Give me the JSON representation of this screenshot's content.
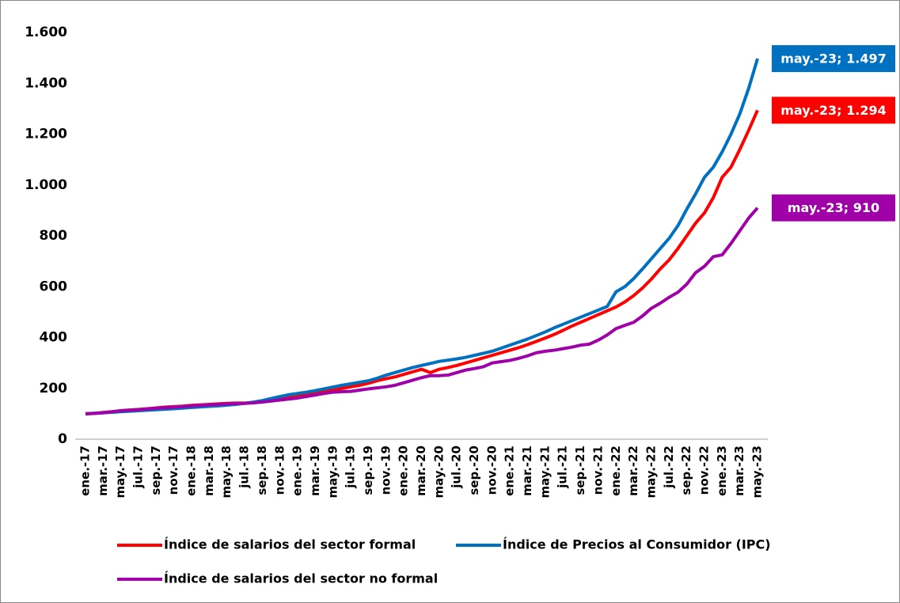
{
  "chart_data": {
    "type": "line",
    "categories": [
      "ene.-17",
      null,
      "mar.-17",
      null,
      "may.-17",
      null,
      "jul.-17",
      null,
      "sep.-17",
      null,
      "nov.-17",
      null,
      "ene.-18",
      null,
      "mar.-18",
      null,
      "may.-18",
      null,
      "jul.-18",
      null,
      "sep.-18",
      null,
      "nov.-18",
      null,
      "ene.-19",
      null,
      "mar.-19",
      null,
      "may.-19",
      null,
      "jul.-19",
      null,
      "sep.-19",
      null,
      "nov.-19",
      null,
      "ene.-20",
      null,
      "mar.-20",
      null,
      "may.-20",
      null,
      "jul.-20",
      null,
      "sep.-20",
      null,
      "nov.-20",
      null,
      "ene.-21",
      null,
      "mar.-21",
      null,
      "may.-21",
      null,
      "jul.-21",
      null,
      "sep.-21",
      null,
      "nov.-21",
      null,
      "ene.-22",
      null,
      "mar.-22",
      null,
      "may.-22",
      null,
      "jul.-22",
      null,
      "sep.-22",
      null,
      "nov.-22",
      null,
      "ene.-23",
      null,
      "mar.-23",
      null,
      "may.-23"
    ],
    "series": [
      {
        "name": "Índice de salarios del sector formal",
        "color": "#ff0000",
        "values": [
          100,
          102,
          105,
          108,
          112,
          115,
          117,
          120,
          123,
          126,
          128,
          130,
          133,
          135,
          137,
          139,
          141,
          142,
          142,
          144,
          148,
          155,
          162,
          168,
          172,
          177,
          182,
          188,
          194,
          200,
          206,
          212,
          220,
          230,
          238,
          245,
          255,
          265,
          275,
          262,
          275,
          282,
          290,
          300,
          310,
          320,
          330,
          340,
          350,
          360,
          372,
          385,
          398,
          412,
          428,
          445,
          460,
          475,
          490,
          505,
          520,
          540,
          565,
          595,
          630,
          670,
          705,
          750,
          800,
          850,
          890,
          950,
          1030,
          1070,
          1140,
          1215,
          1294
        ],
        "value_labels": [
          null,
          null,
          null,
          null,
          null,
          null,
          null,
          null,
          null,
          null,
          null,
          null,
          null,
          null,
          null,
          null,
          null,
          null,
          null,
          null,
          null,
          null,
          null,
          null,
          null,
          null,
          null,
          null,
          null,
          null,
          null,
          null,
          null,
          null,
          null,
          null,
          null,
          null,
          null,
          null,
          null,
          null,
          null,
          null,
          null,
          null,
          null,
          null,
          null,
          null,
          null,
          null,
          null,
          null,
          null,
          null,
          null,
          null,
          null,
          null,
          null,
          null,
          null,
          null,
          null,
          null,
          null,
          null,
          null,
          null,
          null,
          null,
          null,
          null,
          null,
          null,
          "may.-23; 1.294"
        ]
      },
      {
        "name": "Índice de Precios al Consumidor (IPC)",
        "color": "#0070c0",
        "values": [
          100,
          102,
          104,
          106,
          108,
          110,
          112,
          114,
          116,
          118,
          120,
          122,
          125,
          127,
          129,
          131,
          134,
          137,
          141,
          146,
          152,
          160,
          168,
          175,
          180,
          185,
          191,
          198,
          205,
          212,
          218,
          224,
          230,
          240,
          252,
          262,
          272,
          282,
          290,
          298,
          306,
          311,
          316,
          322,
          330,
          338,
          346,
          358,
          370,
          382,
          394,
          408,
          422,
          438,
          452,
          466,
          480,
          494,
          508,
          522,
          580,
          600,
          632,
          670,
          710,
          750,
          790,
          840,
          905,
          965,
          1030,
          1070,
          1130,
          1200,
          1280,
          1380,
          1497
        ],
        "value_labels": [
          null,
          null,
          null,
          null,
          null,
          null,
          null,
          null,
          null,
          null,
          null,
          null,
          null,
          null,
          null,
          null,
          null,
          null,
          null,
          null,
          null,
          null,
          null,
          null,
          null,
          null,
          null,
          null,
          null,
          null,
          null,
          null,
          null,
          null,
          null,
          null,
          null,
          null,
          null,
          null,
          null,
          null,
          null,
          null,
          null,
          null,
          null,
          null,
          null,
          null,
          null,
          null,
          null,
          null,
          null,
          null,
          null,
          null,
          null,
          null,
          null,
          null,
          null,
          null,
          null,
          null,
          null,
          null,
          null,
          null,
          null,
          null,
          null,
          null,
          null,
          null,
          "may.-23; 1.497"
        ]
      },
      {
        "name": "Índice de salarios del sector no formal",
        "color": "#a000a8",
        "values": [
          100,
          101,
          104,
          108,
          112,
          114,
          116,
          119,
          122,
          124,
          126,
          128,
          131,
          133,
          135,
          137,
          139,
          140,
          141,
          143,
          146,
          150,
          154,
          158,
          162,
          168,
          174,
          180,
          185,
          187,
          188,
          193,
          198,
          202,
          206,
          212,
          222,
          232,
          242,
          250,
          250,
          252,
          262,
          272,
          278,
          285,
          300,
          305,
          310,
          318,
          328,
          340,
          346,
          350,
          356,
          362,
          370,
          374,
          390,
          410,
          435,
          448,
          460,
          485,
          515,
          535,
          558,
          578,
          610,
          655,
          680,
          718,
          725,
          770,
          820,
          870,
          910
        ],
        "value_labels": [
          null,
          null,
          null,
          null,
          null,
          null,
          null,
          null,
          null,
          null,
          null,
          null,
          null,
          null,
          null,
          null,
          null,
          null,
          null,
          null,
          null,
          null,
          null,
          null,
          null,
          null,
          null,
          null,
          null,
          null,
          null,
          null,
          null,
          null,
          null,
          null,
          null,
          null,
          null,
          null,
          null,
          null,
          null,
          null,
          null,
          null,
          null,
          null,
          null,
          null,
          null,
          null,
          null,
          null,
          null,
          null,
          null,
          null,
          null,
          null,
          null,
          null,
          null,
          null,
          null,
          null,
          null,
          null,
          null,
          null,
          null,
          null,
          null,
          null,
          null,
          null,
          "may.-23; 910"
        ]
      }
    ],
    "ylim": [
      0,
      1600
    ],
    "yticks": [
      0,
      200,
      400,
      600,
      800,
      {
        "value": 1000,
        "label": "1.000"
      },
      {
        "value": 1200,
        "label": "1.200"
      },
      {
        "value": 1400,
        "label": "1.400"
      },
      {
        "value": 1600,
        "label": "1.600"
      }
    ],
    "grid": false
  }
}
